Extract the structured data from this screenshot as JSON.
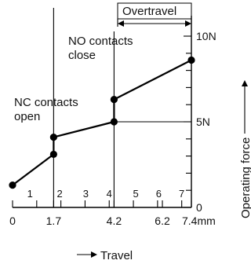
{
  "chart_data": {
    "type": "line",
    "x_axis": {
      "ticks": [
        {
          "value": 0,
          "label": "0"
        },
        {
          "value": 1.7,
          "label": "1.7"
        },
        {
          "value": 4.2,
          "label": "4.2"
        },
        {
          "value": 6.2,
          "label": "6.2"
        },
        {
          "value": 7.4,
          "label": "7.4mm"
        }
      ],
      "range": [
        0,
        7.4
      ]
    },
    "y_axis": {
      "ticks": [
        {
          "value": 0,
          "label": "0"
        },
        {
          "value": 5,
          "label": "5N"
        },
        {
          "value": 10,
          "label": "10N"
        }
      ],
      "range": [
        0,
        10
      ]
    },
    "position_numbers": [
      "1",
      "2",
      "3",
      "4",
      "5",
      "6",
      "7"
    ],
    "series": [
      {
        "x": [
          0,
          1.7,
          1.7,
          4.2,
          4.2,
          7.4
        ],
        "y": [
          1.3,
          3.1,
          4.1,
          5.0,
          6.3,
          8.6
        ]
      }
    ],
    "annotations": {
      "overtravel": "Overtravel",
      "no_contacts_line1": "NO contacts",
      "no_contacts_line2": "close",
      "nc_contacts_line1": "NC contacts",
      "nc_contacts_line2": "open",
      "x_caption": "Travel",
      "y_caption": "Operating force"
    }
  }
}
